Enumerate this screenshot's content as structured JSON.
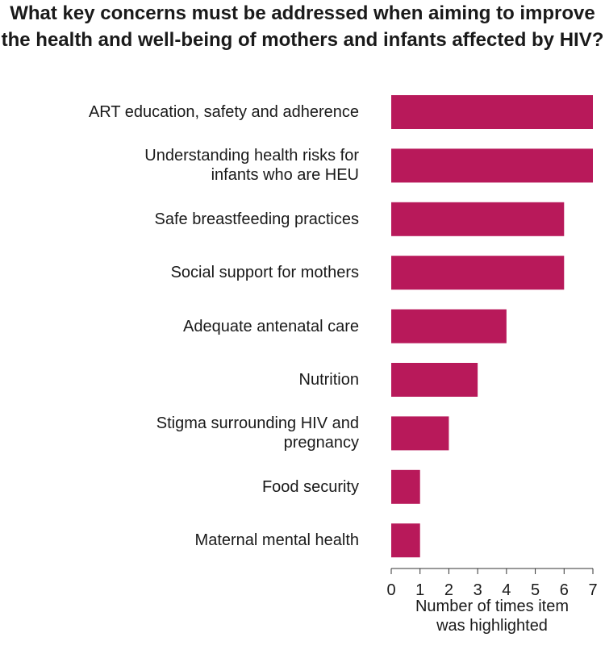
{
  "chart_data": {
    "type": "barh",
    "title": "What key concerns must be addressed when aiming to improve the health and well-being of mothers and infants affected by HIV?",
    "categories": [
      "ART education, safety and adherence",
      "Understanding health risks for\ninfants who are HEU",
      "Safe breastfeeding practices",
      "Social support for mothers",
      "Adequate antenatal care",
      "Nutrition",
      "Stigma surrounding HIV and\npregnancy",
      "Food security",
      "Maternal mental health"
    ],
    "values": [
      7,
      7,
      6,
      6,
      4,
      3,
      2,
      1,
      1
    ],
    "color": "#b8195a",
    "xlabel": "Number of times item\nwas highlighted",
    "xlim": [
      0,
      7
    ],
    "xticks": [
      0,
      1,
      2,
      3,
      4,
      5,
      6,
      7
    ]
  }
}
